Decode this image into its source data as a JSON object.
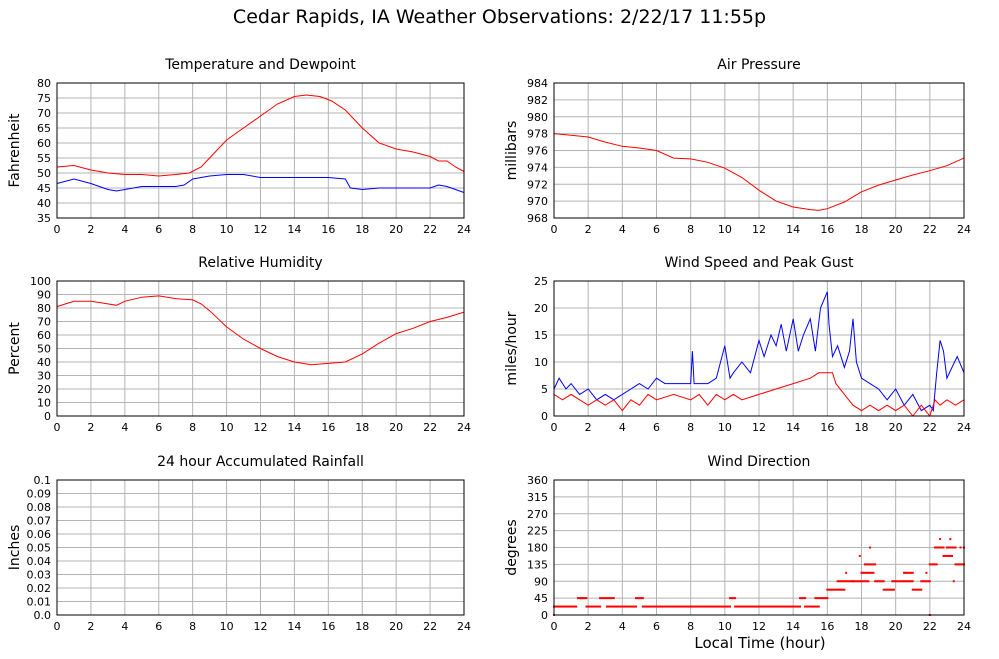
{
  "title": "Cedar Rapids, IA Weather Observations: 2/22/17 11:55p",
  "xlabel": "Local Time (hour)",
  "chart_data": [
    {
      "type": "line",
      "title": "Temperature and Dewpoint",
      "ylabel": "Fahrenheit",
      "xlim": [
        0,
        24
      ],
      "ylim": [
        35,
        80
      ],
      "xticks": [
        0,
        2,
        4,
        6,
        8,
        10,
        12,
        14,
        16,
        18,
        20,
        22,
        24
      ],
      "yticks": [
        35,
        40,
        45,
        50,
        55,
        60,
        65,
        70,
        75,
        80
      ],
      "grid": true,
      "series": [
        {
          "color": "#ff0000",
          "x": [
            0,
            1,
            2,
            3,
            4,
            5,
            6,
            7,
            7.8,
            8.5,
            9,
            10,
            11,
            12,
            13,
            14,
            14.7,
            15.5,
            16.2,
            17,
            18,
            19,
            20,
            21,
            22,
            22.5,
            23,
            23.5,
            24
          ],
          "y": [
            52,
            52.5,
            51,
            50,
            49.5,
            49.5,
            49,
            49.5,
            50,
            52,
            55,
            61,
            65,
            69,
            73,
            75.5,
            76,
            75.5,
            74,
            71,
            65,
            60,
            58,
            57,
            55.5,
            54,
            54,
            52,
            50.5
          ]
        },
        {
          "color": "#0000ff",
          "x": [
            0,
            1,
            2,
            3,
            3.5,
            4,
            5,
            6,
            7,
            7.5,
            8,
            9,
            10,
            11,
            12,
            13,
            14,
            15,
            16,
            17,
            17.3,
            18,
            19,
            20,
            21,
            22,
            22.5,
            23,
            23.5,
            24
          ],
          "y": [
            46.5,
            48,
            46.5,
            44.5,
            44,
            44.5,
            45.5,
            45.5,
            45.5,
            46,
            48,
            49,
            49.5,
            49.5,
            48.5,
            48.5,
            48.5,
            48.5,
            48.5,
            48,
            45,
            44.5,
            45,
            45,
            45,
            45,
            46,
            45.5,
            44.5,
            43.5
          ]
        }
      ]
    },
    {
      "type": "line",
      "title": "Air Pressure",
      "ylabel": "millibars",
      "xlim": [
        0,
        24
      ],
      "ylim": [
        968,
        984
      ],
      "xticks": [
        0,
        2,
        4,
        6,
        8,
        10,
        12,
        14,
        16,
        18,
        20,
        22,
        24
      ],
      "yticks": [
        968,
        970,
        972,
        974,
        976,
        978,
        980,
        982,
        984
      ],
      "grid": true,
      "series": [
        {
          "color": "#ff0000",
          "x": [
            0,
            1,
            2,
            3,
            4,
            5,
            6,
            7,
            8,
            9,
            10,
            11,
            12,
            13,
            14,
            15,
            15.5,
            16,
            17,
            18,
            19,
            20,
            21,
            22,
            23,
            24
          ],
          "y": [
            978,
            977.8,
            977.6,
            977,
            976.5,
            976.3,
            976,
            975.1,
            975,
            974.6,
            973.9,
            972.8,
            971.3,
            970,
            969.3,
            969,
            968.9,
            969.1,
            969.9,
            971.1,
            971.9,
            972.5,
            973.1,
            973.6,
            974.2,
            975.1
          ]
        }
      ]
    },
    {
      "type": "line",
      "title": "Relative Humidity",
      "ylabel": "Percent",
      "xlim": [
        0,
        24
      ],
      "ylim": [
        0,
        100
      ],
      "xticks": [
        0,
        2,
        4,
        6,
        8,
        10,
        12,
        14,
        16,
        18,
        20,
        22,
        24
      ],
      "yticks": [
        0,
        10,
        20,
        30,
        40,
        50,
        60,
        70,
        80,
        90,
        100
      ],
      "grid": true,
      "series": [
        {
          "color": "#ff0000",
          "x": [
            0,
            0.5,
            1,
            2,
            3,
            3.5,
            4,
            5,
            6,
            7,
            8,
            8.5,
            9,
            10,
            11,
            12,
            13,
            14,
            15,
            16,
            17,
            18,
            19,
            20,
            21,
            22,
            23,
            24
          ],
          "y": [
            81,
            83,
            85,
            85,
            83,
            82,
            85,
            88,
            89,
            87,
            86,
            83,
            78,
            66,
            57,
            50,
            44,
            40,
            38,
            39,
            40,
            46,
            54,
            61,
            65,
            70,
            73,
            77
          ]
        }
      ]
    },
    {
      "type": "line",
      "title": "Wind Speed and Peak Gust",
      "ylabel": "miles/hour",
      "xlim": [
        0,
        24
      ],
      "ylim": [
        0,
        25
      ],
      "xticks": [
        0,
        2,
        4,
        6,
        8,
        10,
        12,
        14,
        16,
        18,
        20,
        22,
        24
      ],
      "yticks": [
        0,
        5,
        10,
        15,
        20,
        25
      ],
      "grid": true,
      "series": [
        {
          "color": "#0000ff",
          "x": [
            0,
            0.3,
            0.7,
            1,
            1.5,
            2,
            2.5,
            3,
            3.5,
            4,
            4.5,
            5,
            5.5,
            6,
            6.5,
            7,
            7.5,
            8,
            8.1,
            8.2,
            8.3,
            9,
            9.5,
            10,
            10.3,
            10.5,
            11,
            11.5,
            12,
            12.3,
            12.7,
            13,
            13.3,
            13.6,
            14,
            14.3,
            14.6,
            15,
            15.3,
            15.6,
            16,
            16.1,
            16.3,
            16.6,
            17,
            17.3,
            17.5,
            17.7,
            18,
            18.5,
            19,
            19.5,
            20,
            20.5,
            21,
            21.5,
            22,
            22.2,
            22.4,
            22.6,
            22.8,
            23,
            23.3,
            23.6,
            24
          ],
          "y": [
            5,
            7,
            5,
            6,
            4,
            5,
            3,
            4,
            3,
            4,
            5,
            6,
            5,
            7,
            6,
            6,
            6,
            6,
            12,
            6,
            6,
            6,
            7,
            13,
            7,
            8,
            10,
            8,
            14,
            11,
            15,
            13,
            17,
            12,
            18,
            12,
            15,
            18,
            12,
            20,
            23,
            17,
            11,
            13,
            9,
            12,
            18,
            10,
            7,
            6,
            5,
            3,
            5,
            2,
            4,
            1,
            2,
            1,
            8,
            14,
            12,
            7,
            9,
            11,
            8
          ]
        },
        {
          "color": "#ff0000",
          "x": [
            0,
            0.5,
            1,
            1.5,
            2,
            2.5,
            3,
            3.5,
            4,
            4.5,
            5,
            5.5,
            6,
            7,
            8,
            8.5,
            9,
            9.5,
            10,
            10.5,
            11,
            12,
            13,
            14,
            15,
            15.5,
            16,
            16.3,
            16.5,
            17,
            17.5,
            18,
            18.5,
            19,
            19.5,
            20,
            20.5,
            21,
            21.5,
            22,
            22.3,
            22.6,
            23,
            23.5,
            24
          ],
          "y": [
            4,
            3,
            4,
            3,
            2,
            3,
            2,
            3,
            1,
            3,
            2,
            4,
            3,
            4,
            3,
            4,
            2,
            4,
            3,
            4,
            3,
            4,
            5,
            6,
            7,
            8,
            8,
            8,
            6,
            4,
            2,
            1,
            2,
            1,
            2,
            1,
            2,
            0,
            2,
            0,
            3,
            2,
            3,
            2,
            3
          ]
        }
      ]
    },
    {
      "type": "line",
      "title": "24 hour Accumulated Rainfall",
      "ylabel": "Inches",
      "xlim": [
        0,
        24
      ],
      "ylim": [
        0,
        0.1
      ],
      "xticks": [
        0,
        2,
        4,
        6,
        8,
        10,
        12,
        14,
        16,
        18,
        20,
        22,
        24
      ],
      "yticks": [
        "0.0",
        "0.01",
        "0.02",
        "0.03",
        "0.04",
        "0.05",
        "0.06",
        "0.07",
        "0.08",
        "0.09",
        "0.1"
      ],
      "grid": true,
      "series": [
        {
          "color": "#ff0000",
          "x": [
            0,
            24
          ],
          "y": [
            0,
            0
          ]
        }
      ]
    },
    {
      "type": "scatter",
      "title": "Wind Direction",
      "ylabel": "degrees",
      "xlim": [
        0,
        24
      ],
      "ylim": [
        0,
        360
      ],
      "xticks": [
        0,
        2,
        4,
        6,
        8,
        10,
        12,
        14,
        16,
        18,
        20,
        22,
        24
      ],
      "yticks": [
        0,
        45,
        90,
        135,
        180,
        225,
        270,
        315,
        360
      ],
      "grid": true,
      "series": [
        {
          "color": "#ff0000",
          "segments": [
            {
              "from": 0,
              "to": 1.3,
              "y": 22.5
            },
            {
              "from": 1.4,
              "to": 1.9,
              "y": 45
            },
            {
              "from": 1.9,
              "to": 2.7,
              "y": 22.5
            },
            {
              "from": 2.7,
              "to": 3.5,
              "y": 45
            },
            {
              "from": 3.1,
              "to": 4.8,
              "y": 22.5
            },
            {
              "from": 4.8,
              "to": 5.2,
              "y": 45
            },
            {
              "from": 5.2,
              "to": 10.3,
              "y": 22.5
            },
            {
              "from": 10.3,
              "to": 10.6,
              "y": 45
            },
            {
              "from": 10.6,
              "to": 14.4,
              "y": 22.5
            },
            {
              "from": 14.4,
              "to": 14.7,
              "y": 45
            },
            {
              "from": 14.7,
              "to": 15.5,
              "y": 22.5
            },
            {
              "from": 15.3,
              "to": 16.0,
              "y": 45
            },
            {
              "from": 16.0,
              "to": 17.0,
              "y": 67.5
            },
            {
              "from": 16.6,
              "to": 17.5,
              "y": 90
            },
            {
              "from": 17.5,
              "to": 18.4,
              "y": 90
            },
            {
              "from": 18.0,
              "to": 18.7,
              "y": 112.5
            },
            {
              "from": 18.2,
              "to": 18.8,
              "y": 135
            },
            {
              "from": 18.8,
              "to": 19.3,
              "y": 90
            },
            {
              "from": 19.3,
              "to": 19.9,
              "y": 67.5
            },
            {
              "from": 19.8,
              "to": 21.0,
              "y": 90
            },
            {
              "from": 20.5,
              "to": 21.0,
              "y": 112.5
            },
            {
              "from": 21.0,
              "to": 21.5,
              "y": 67.5
            },
            {
              "from": 21.5,
              "to": 22.0,
              "y": 90
            },
            {
              "from": 22.0,
              "to": 22.4,
              "y": 135
            },
            {
              "from": 22.3,
              "to": 22.8,
              "y": 180
            },
            {
              "from": 22.8,
              "to": 23.3,
              "y": 157.5
            },
            {
              "from": 23.0,
              "to": 23.5,
              "y": 180
            },
            {
              "from": 23.5,
              "to": 24.0,
              "y": 135
            }
          ],
          "points": [
            [
              0,
              0
            ],
            [
              1.6,
              45
            ],
            [
              8,
              22.5
            ],
            [
              17.1,
              112.5
            ],
            [
              17.9,
              157.5
            ],
            [
              18.5,
              180
            ],
            [
              20.5,
              112.5
            ],
            [
              21.8,
              112.5
            ],
            [
              22.0,
              0
            ],
            [
              22.6,
              202.5
            ],
            [
              23.2,
              202.5
            ],
            [
              23.4,
              90
            ],
            [
              23.8,
              180
            ],
            [
              24,
              180
            ]
          ]
        }
      ]
    }
  ]
}
